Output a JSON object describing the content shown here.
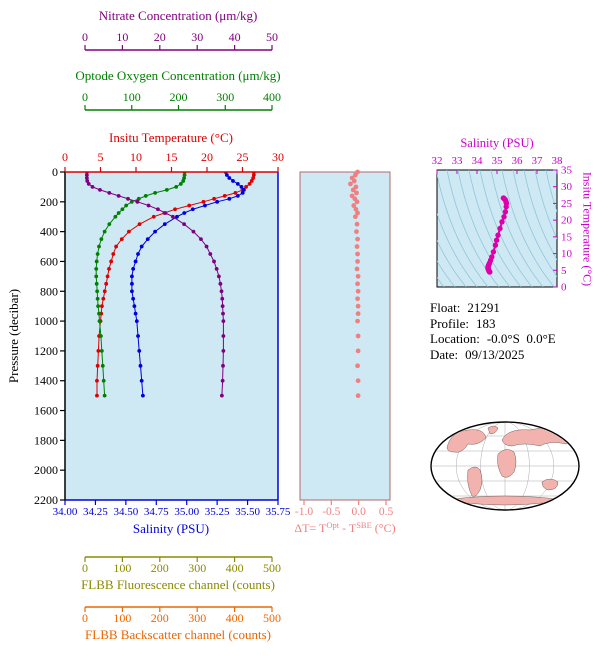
{
  "figure": {
    "info": {
      "float_label": "Float:",
      "float_value": "21291",
      "profile_label": "Profile:",
      "profile_value": "183",
      "location_label": "Location:",
      "location_value": "-0.0°S  0.0°E",
      "date_label": "Date:",
      "date_value": "09/13/2025"
    }
  },
  "colors": {
    "panel_bg": "#cfe9f4",
    "ts_contour": "#8fc6da",
    "map_land": "#f2b3ae",
    "map_ocean": "#ffffff",
    "map_outline": "#000000"
  },
  "axes": {
    "nitrate": {
      "title": "Nitrate Concentration (μm/kg)",
      "color": "#800080",
      "min": 0,
      "max": 50,
      "ticks": [
        "0",
        "10",
        "20",
        "30",
        "40",
        "50"
      ]
    },
    "oxygen": {
      "title": "Optode Oxygen Concentration (μm/kg)",
      "color": "#008000",
      "min": 0,
      "max": 400,
      "ticks": [
        "0",
        "100",
        "200",
        "300",
        "400"
      ]
    },
    "temperature": {
      "title": "Insitu Temperature (°C)",
      "color": "#dd0000",
      "min": 0,
      "max": 30,
      "ticks": [
        "0",
        "5",
        "10",
        "15",
        "20",
        "25",
        "30"
      ]
    },
    "pressure": {
      "title": "Pressure (decibar)",
      "color": "#000000",
      "min": 0,
      "max": 2200,
      "ticks": [
        "0",
        "200",
        "400",
        "600",
        "800",
        "1000",
        "1200",
        "1400",
        "1600",
        "1800",
        "2000",
        "2200"
      ]
    },
    "salinity": {
      "title": "Salinity (PSU)",
      "color": "#0000dd",
      "min": 34.0,
      "max": 35.75,
      "ticks": [
        "34.00",
        "34.25",
        "34.50",
        "34.75",
        "35.00",
        "35.25",
        "35.50",
        "35.75"
      ]
    },
    "fluorescence": {
      "title": "FLBB Fluorescence channel (counts)",
      "color": "#8b8b00",
      "min": 0,
      "max": 500,
      "ticks": [
        "0",
        "100",
        "200",
        "300",
        "400",
        "500"
      ]
    },
    "backscatter": {
      "title": "FLBB Backscatter channel (counts)",
      "color": "#ee6600",
      "min": 0,
      "max": 500,
      "ticks": [
        "0",
        "100",
        "200",
        "300",
        "400",
        "500"
      ]
    },
    "delta_t": {
      "title_parts": {
        "prefix": "ΔT= T",
        "sup1": "Opt",
        "mid": " - T",
        "sup2": "SBE",
        "suffix": " (°C)"
      },
      "color": "#f08080",
      "min": -1.0,
      "max": 0.5,
      "ticks": [
        "-1.0",
        "-0.5",
        "0.0",
        "0.5"
      ]
    },
    "ts_salinity": {
      "title": "Salinity (PSU)",
      "color": "#cc00cc",
      "min": 32,
      "max": 38,
      "ticks": [
        "32",
        "33",
        "34",
        "35",
        "36",
        "37",
        "38"
      ]
    },
    "ts_temperature": {
      "title": "Insitu Temperature (°C)",
      "color": "#cc00cc",
      "min": 0,
      "max": 35,
      "ticks": [
        "0",
        "5",
        "10",
        "15",
        "20",
        "25",
        "30",
        "35"
      ]
    }
  },
  "chart_data": [
    {
      "type": "line",
      "name": "vertical_profiles",
      "title": "",
      "ylabel": "Pressure (decibar)",
      "ylim": [
        0,
        2200
      ],
      "pressure": [
        0,
        20,
        40,
        60,
        80,
        100,
        120,
        140,
        160,
        180,
        200,
        225,
        250,
        275,
        300,
        350,
        400,
        450,
        500,
        550,
        600,
        650,
        700,
        750,
        800,
        850,
        900,
        950,
        1000,
        1100,
        1200,
        1300,
        1400,
        1500
      ],
      "series": [
        {
          "name": "Insitu Temperature (°C)",
          "color": "#dd0000",
          "xlim": [
            0,
            30
          ],
          "values": [
            26.6,
            26.6,
            26.5,
            26.3,
            26.0,
            25.5,
            25.0,
            24.0,
            22.5,
            21.0,
            19.5,
            17.5,
            15.5,
            14.0,
            12.5,
            10.5,
            9.0,
            8.0,
            7.2,
            6.8,
            6.5,
            6.2,
            6.0,
            5.8,
            5.6,
            5.4,
            5.2,
            5.1,
            5.0,
            4.8,
            4.7,
            4.6,
            4.5,
            4.5
          ]
        },
        {
          "name": "Salinity (PSU)",
          "color": "#0000dd",
          "xlim": [
            34.0,
            35.75
          ],
          "values": [
            35.32,
            35.33,
            35.35,
            35.38,
            35.42,
            35.45,
            35.47,
            35.46,
            35.42,
            35.35,
            35.25,
            35.15,
            35.05,
            34.98,
            34.92,
            34.82,
            34.74,
            34.68,
            34.63,
            34.6,
            34.58,
            34.56,
            34.55,
            34.55,
            34.55,
            34.56,
            34.57,
            34.58,
            34.59,
            34.6,
            34.61,
            34.62,
            34.63,
            34.64
          ]
        },
        {
          "name": "Optode Oxygen Concentration (μm/kg)",
          "color": "#008000",
          "xlim": [
            0,
            400
          ],
          "values": [
            213,
            213,
            212,
            210,
            205,
            195,
            175,
            150,
            130,
            115,
            100,
            88,
            80,
            72,
            65,
            52,
            42,
            35,
            30,
            27,
            25,
            24,
            24,
            25,
            26,
            27,
            28,
            30,
            31,
            34,
            36,
            38,
            40,
            42
          ]
        },
        {
          "name": "Nitrate Concentration (μm/kg)",
          "color": "#800080",
          "xlim": [
            0,
            50
          ],
          "values": [
            0.5,
            0.5,
            0.5,
            0.6,
            1.0,
            2.0,
            4.0,
            6.5,
            9.0,
            11.5,
            14.0,
            17.0,
            19.5,
            21.5,
            23.5,
            26.5,
            29.0,
            31.0,
            32.5,
            33.5,
            34.5,
            35.2,
            35.8,
            36.2,
            36.5,
            36.7,
            36.8,
            36.9,
            37.0,
            37.0,
            37.0,
            36.9,
            36.8,
            36.6
          ]
        }
      ]
    },
    {
      "type": "scatter",
      "name": "delta_t_vs_pressure",
      "xlabel": "ΔT= T^Opt - T^SBE (°C)",
      "xlim": [
        -1.0,
        0.5
      ],
      "ylim": [
        0,
        2200
      ],
      "color": "#f08080",
      "values": [
        -0.02,
        -0.06,
        -0.12,
        -0.08,
        -0.15,
        -0.05,
        -0.1,
        -0.04,
        -0.12,
        -0.07,
        -0.03,
        -0.09,
        -0.05,
        -0.02,
        -0.06,
        -0.03,
        -0.04,
        -0.02,
        -0.03,
        -0.02,
        -0.02,
        -0.03,
        -0.01,
        -0.02,
        -0.01,
        -0.02,
        -0.01,
        -0.01,
        -0.02,
        -0.01,
        -0.01,
        -0.02,
        -0.01,
        -0.01
      ]
    },
    {
      "type": "scatter",
      "name": "ts_diagram",
      "xlabel": "Salinity (PSU)",
      "ylabel": "Insitu Temperature (°C)",
      "xlim": [
        32,
        38
      ],
      "ylim": [
        0,
        35
      ],
      "color": "#dd00aa",
      "note": "points are (salinity, temperature) pairs taken from the profile series; background shows density isoline contours"
    }
  ]
}
